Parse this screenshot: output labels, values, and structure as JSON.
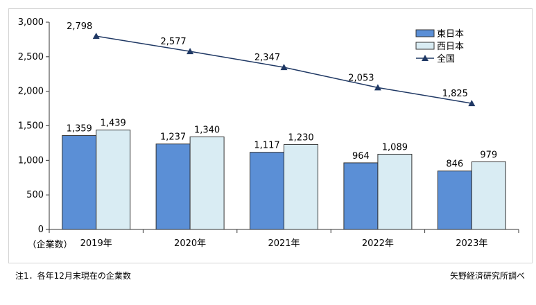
{
  "chart_data": {
    "type": "bar",
    "categories": [
      "2019年",
      "2020年",
      "2021年",
      "2022年",
      "2023年"
    ],
    "series": [
      {
        "name": "東日本",
        "kind": "bar",
        "color": "#5b8fd6",
        "values": [
          1359,
          1237,
          1117,
          964,
          846
        ]
      },
      {
        "name": "西日本",
        "kind": "bar",
        "color": "#d9ecf3",
        "values": [
          1439,
          1340,
          1230,
          1089,
          979
        ]
      },
      {
        "name": "全国",
        "kind": "line",
        "color": "#1f3864",
        "marker": "triangle",
        "values": [
          2798,
          2577,
          2347,
          2053,
          1825
        ]
      }
    ],
    "ylim": [
      0,
      3000
    ],
    "yticks": [
      0,
      500,
      1000,
      1500,
      2000,
      2500,
      3000
    ],
    "ytick_labels": [
      "0",
      "500",
      "1,000",
      "1,500",
      "2,000",
      "2,500",
      "3,000"
    ],
    "ylabel": "（企業数）",
    "xlabel": "",
    "title": "",
    "grid": false,
    "legend": "top-right"
  },
  "notes": {
    "left": "注1．各年12月末現在の企業数",
    "right": "矢野経済研究所調べ"
  }
}
